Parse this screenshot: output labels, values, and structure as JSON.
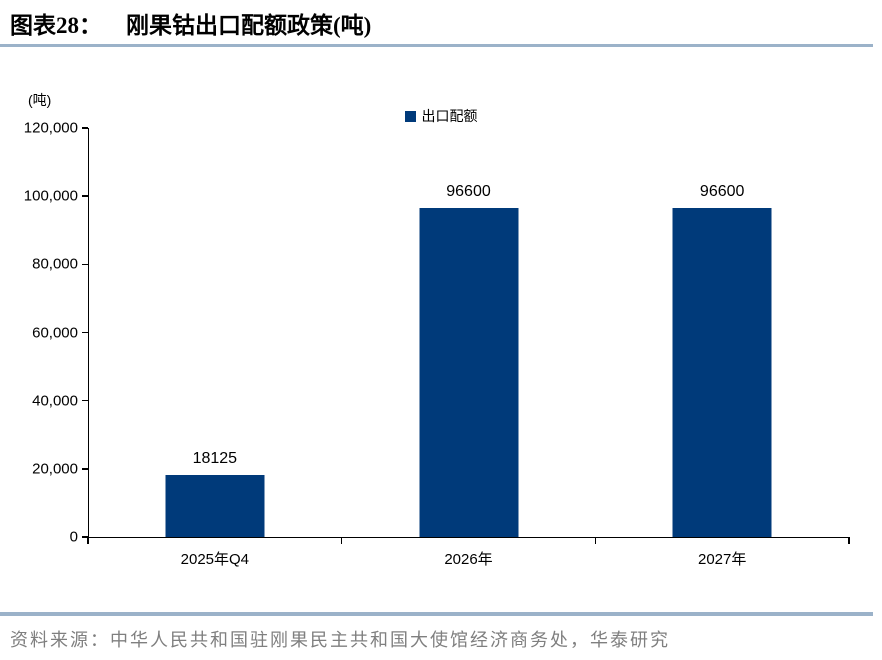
{
  "header": {
    "figure_label": "图表28：",
    "title": "刚果钴出口配额政策(吨)"
  },
  "legend": {
    "items": [
      {
        "label": "出口配额",
        "color": "#003A7A"
      }
    ]
  },
  "chart_data": {
    "type": "bar",
    "title": "刚果钴出口配额政策(吨)",
    "unit_label": "(吨)",
    "categories": [
      "2025年Q4",
      "2026年",
      "2027年"
    ],
    "series": [
      {
        "name": "出口配额",
        "values": [
          18125,
          96600,
          96600
        ]
      }
    ],
    "data_labels": [
      "18125",
      "96600",
      "96600"
    ],
    "ylim": [
      0,
      120000
    ],
    "ytick_step": 20000,
    "ytick_labels": [
      "0",
      "20,000",
      "40,000",
      "60,000",
      "80,000",
      "100,000",
      "120,000"
    ],
    "grid": false,
    "legend_position": "top-center",
    "colors": {
      "bar": "#003A7A",
      "axis": "#000000",
      "rule": "#9BB2C9",
      "source_text": "#7f7f7f"
    }
  },
  "footer": {
    "source": "资料来源：中华人民共和国驻刚果民主共和国大使馆经济商务处，华泰研究"
  }
}
